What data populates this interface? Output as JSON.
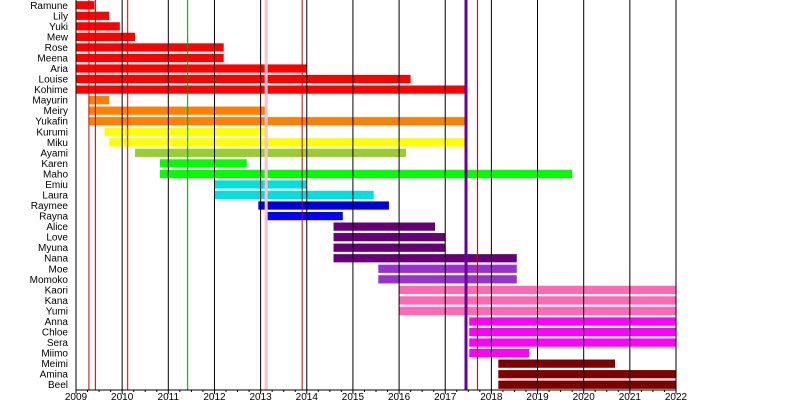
{
  "chart_data": {
    "type": "timeline",
    "title": "",
    "xlabel": "",
    "ylabel": "",
    "xlim": [
      2009,
      2022
    ],
    "grid": true,
    "x_ticks": [
      "2009",
      "2010",
      "2011",
      "2012",
      "2013",
      "2014",
      "2015",
      "2016",
      "2017",
      "2018",
      "2019",
      "2020",
      "2021",
      "2022"
    ],
    "members": [
      {
        "name": "Ramune",
        "start": 2009.0,
        "end": 2009.4,
        "color": "#ff0000"
      },
      {
        "name": "Lily",
        "start": 2009.0,
        "end": 2009.72,
        "color": "#ff0000"
      },
      {
        "name": "Yuki",
        "start": 2009.0,
        "end": 2009.95,
        "color": "#ff0000"
      },
      {
        "name": "Mew",
        "start": 2009.0,
        "end": 2010.28,
        "color": "#ff0000"
      },
      {
        "name": "Rose",
        "start": 2009.0,
        "end": 2012.2,
        "color": "#ff0000"
      },
      {
        "name": "Meena",
        "start": 2009.0,
        "end": 2012.2,
        "color": "#ff0000"
      },
      {
        "name": "Aria",
        "start": 2009.0,
        "end": 2014.0,
        "color": "#ff0000"
      },
      {
        "name": "Louise",
        "start": 2009.0,
        "end": 2016.25,
        "color": "#ff0000"
      },
      {
        "name": "Kohime",
        "start": 2009.0,
        "end": 2017.45,
        "color": "#ff0000"
      },
      {
        "name": "Mayurin",
        "start": 2009.28,
        "end": 2009.72,
        "color": "#ff8000"
      },
      {
        "name": "Meiry",
        "start": 2009.28,
        "end": 2013.15,
        "color": "#ff8000"
      },
      {
        "name": "Yukafin",
        "start": 2009.28,
        "end": 2017.45,
        "color": "#ff8000"
      },
      {
        "name": "Kurumi",
        "start": 2009.62,
        "end": 2013.15,
        "color": "#ffff00"
      },
      {
        "name": "Miku",
        "start": 2009.72,
        "end": 2017.45,
        "color": "#ffff00"
      },
      {
        "name": "Ayami",
        "start": 2010.28,
        "end": 2016.15,
        "color": "#9acd32"
      },
      {
        "name": "Karen",
        "start": 2010.82,
        "end": 2012.7,
        "color": "#00ff00"
      },
      {
        "name": "Maho",
        "start": 2010.82,
        "end": 2019.75,
        "color": "#00ff00"
      },
      {
        "name": "Emiu",
        "start": 2012.0,
        "end": 2014.0,
        "color": "#00e0e0"
      },
      {
        "name": "Laura",
        "start": 2012.0,
        "end": 2015.45,
        "color": "#00e0e0"
      },
      {
        "name": "Raymee",
        "start": 2012.95,
        "end": 2015.78,
        "color": "#0000dd"
      },
      {
        "name": "Rayna",
        "start": 2013.15,
        "end": 2014.78,
        "color": "#0000ff"
      },
      {
        "name": "Alice",
        "start": 2014.58,
        "end": 2016.78,
        "color": "#660077"
      },
      {
        "name": "Love",
        "start": 2014.58,
        "end": 2017.0,
        "color": "#660077"
      },
      {
        "name": "Myuna",
        "start": 2014.58,
        "end": 2017.0,
        "color": "#660077"
      },
      {
        "name": "Nana",
        "start": 2014.58,
        "end": 2018.55,
        "color": "#660077"
      },
      {
        "name": "Moe",
        "start": 2015.55,
        "end": 2018.55,
        "color": "#9932cc"
      },
      {
        "name": "Momoko",
        "start": 2015.55,
        "end": 2018.55,
        "color": "#9932cc"
      },
      {
        "name": "Kaori",
        "start": 2016.0,
        "end": 2022.0,
        "color": "#ff69b4"
      },
      {
        "name": "Kana",
        "start": 2016.0,
        "end": 2022.0,
        "color": "#ff69b4"
      },
      {
        "name": "Yumi",
        "start": 2016.0,
        "end": 2022.0,
        "color": "#ff69b4"
      },
      {
        "name": "Anna",
        "start": 2017.52,
        "end": 2022.0,
        "color": "#ff00ff"
      },
      {
        "name": "Chloe",
        "start": 2017.52,
        "end": 2022.0,
        "color": "#ff00ff"
      },
      {
        "name": "Sera",
        "start": 2017.52,
        "end": 2022.0,
        "color": "#ff00ff"
      },
      {
        "name": "Miimo",
        "start": 2017.52,
        "end": 2018.82,
        "color": "#ff00ff"
      },
      {
        "name": "Meimi",
        "start": 2018.15,
        "end": 2020.68,
        "color": "#800000"
      },
      {
        "name": "Amina",
        "start": 2018.15,
        "end": 2022.0,
        "color": "#800000"
      },
      {
        "name": "Beel",
        "start": 2018.15,
        "end": 2022.0,
        "color": "#800000"
      }
    ],
    "event_lines": [
      {
        "x": 2009.28,
        "color": "#cc0000"
      },
      {
        "x": 2009.42,
        "color": "#cc0000"
      },
      {
        "x": 2010.12,
        "color": "#cc0000"
      },
      {
        "x": 2011.42,
        "color": "#009900"
      },
      {
        "x": 2013.12,
        "color": "#ffc0cb"
      },
      {
        "x": 2013.9,
        "color": "#cc0000"
      },
      {
        "x": 2017.45,
        "color": "#660099"
      },
      {
        "x": 2017.7,
        "color": "#cc0000"
      }
    ]
  }
}
